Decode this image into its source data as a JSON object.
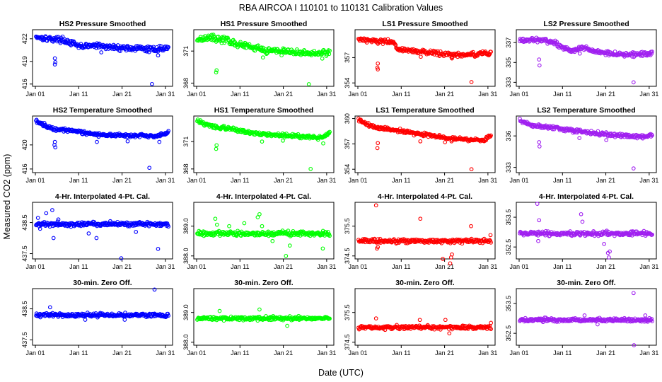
{
  "figure": {
    "title": "RBA   AIRCOA I   110101 to 110131   Calibration Values",
    "xlabel": "Date (UTC)",
    "ylabel": "Measured CO2 (ppm)",
    "x_ticks": [
      "Jan 01",
      "Jan 11",
      "Jan 21",
      "Jan 31"
    ]
  },
  "colors": {
    "HS2": "#0000ff",
    "HS1": "#00ff00",
    "LS1": "#ff0000",
    "LS2": "#a020f0"
  },
  "chart_data": [
    {
      "type": "scatter",
      "title": "HS2 Pressure Smoothed",
      "series": "HS2",
      "xlim": [
        0,
        31
      ],
      "ylim": [
        415.7,
        423.2
      ],
      "yticks": [
        "416",
        "419",
        "422"
      ],
      "ytick_values": [
        416,
        419,
        422
      ],
      "trend": [
        [
          0,
          422.3
        ],
        [
          3,
          422.0
        ],
        [
          6,
          421.9
        ],
        [
          8,
          421.5
        ],
        [
          10,
          421.0
        ],
        [
          14,
          421.1
        ],
        [
          17,
          420.9
        ],
        [
          20,
          420.8
        ],
        [
          24,
          420.7
        ],
        [
          27,
          420.6
        ],
        [
          30.5,
          420.8
        ]
      ],
      "noise": 0.35,
      "outliers": [
        [
          4.5,
          419.4
        ],
        [
          4.5,
          418.6
        ],
        [
          4.6,
          418.9
        ],
        [
          15.2,
          420.2
        ],
        [
          26.9,
          416.0
        ],
        [
          28.3,
          419.8
        ]
      ]
    },
    {
      "type": "scatter",
      "title": "HS1 Pressure Smoothed",
      "series": "HS1",
      "xlim": [
        0,
        31
      ],
      "ylim": [
        367.7,
        373.0
      ],
      "yticks": [
        "368",
        "371"
      ],
      "ytick_values": [
        368,
        371
      ],
      "trend": [
        [
          0,
          372.1
        ],
        [
          3,
          372.3
        ],
        [
          7,
          372.0
        ],
        [
          9,
          371.7
        ],
        [
          12,
          371.4
        ],
        [
          16,
          371.1
        ],
        [
          20,
          371.0
        ],
        [
          24,
          370.8
        ],
        [
          28,
          370.8
        ],
        [
          30.5,
          370.9
        ]
      ],
      "noise": 0.28,
      "outliers": [
        [
          4.5,
          369.0
        ],
        [
          4.6,
          369.2
        ],
        [
          15.3,
          370.4
        ],
        [
          19.6,
          370.6
        ],
        [
          25.9,
          367.9
        ],
        [
          29,
          370.3
        ]
      ]
    },
    {
      "type": "scatter",
      "title": "LS1 Pressure Smoothed",
      "series": "LS1",
      "xlim": [
        0,
        31
      ],
      "ylim": [
        353.6,
        360.3
      ],
      "yticks": [
        "354",
        "357"
      ],
      "ytick_values": [
        354,
        357
      ],
      "trend": [
        [
          0,
          359.2
        ],
        [
          4,
          359.0
        ],
        [
          8,
          358.8
        ],
        [
          9,
          358.1
        ],
        [
          12,
          357.8
        ],
        [
          16,
          357.6
        ],
        [
          20,
          357.4
        ],
        [
          25,
          357.3
        ],
        [
          30.5,
          357.5
        ]
      ],
      "noise": 0.28,
      "outliers": [
        [
          4.5,
          355.8
        ],
        [
          4.6,
          356.3
        ],
        [
          4.6,
          355.6
        ],
        [
          14.5,
          357.1
        ],
        [
          21.7,
          356.9
        ],
        [
          26.2,
          354.1
        ],
        [
          30.2,
          357.3
        ]
      ]
    },
    {
      "type": "scatter",
      "title": "LS2 Pressure Smoothed",
      "series": "LS2",
      "xlim": [
        0,
        31
      ],
      "ylim": [
        332.6,
        338.3
      ],
      "yticks": [
        "333",
        "335",
        "337"
      ],
      "ytick_values": [
        333,
        335,
        337
      ],
      "trend": [
        [
          0,
          337.2
        ],
        [
          4,
          337.3
        ],
        [
          8,
          337.0
        ],
        [
          10,
          336.5
        ],
        [
          12,
          336.2
        ],
        [
          14,
          336.5
        ],
        [
          17,
          336.2
        ],
        [
          21,
          335.9
        ],
        [
          25,
          335.8
        ],
        [
          30.5,
          335.9
        ]
      ],
      "noise": 0.22,
      "outliers": [
        [
          4.6,
          335.3
        ],
        [
          4.7,
          334.7
        ],
        [
          14.0,
          335.9
        ],
        [
          26.4,
          333.0
        ]
      ]
    },
    {
      "type": "scatter",
      "title": "HS2 Temperature Smoothed",
      "series": "HS2",
      "xlim": [
        0,
        31
      ],
      "ylim": [
        415.4,
        424.8
      ],
      "yticks": [
        "416",
        "420"
      ],
      "ytick_values": [
        416,
        420
      ],
      "trend": [
        [
          0,
          424.0
        ],
        [
          1,
          423.7
        ],
        [
          2,
          423.3
        ],
        [
          3,
          422.9
        ],
        [
          5,
          422.6
        ],
        [
          8,
          422.5
        ],
        [
          10,
          422.3
        ],
        [
          12,
          421.9
        ],
        [
          15,
          421.7
        ],
        [
          20,
          421.6
        ],
        [
          26,
          421.5
        ],
        [
          28,
          421.4
        ],
        [
          30.5,
          422.0
        ]
      ],
      "noise": 0.3,
      "outliers": [
        [
          4.4,
          420.0
        ],
        [
          4.5,
          420.5
        ],
        [
          4.6,
          419.6
        ],
        [
          14.2,
          420.5
        ],
        [
          21.3,
          420.6
        ],
        [
          26.3,
          416.2
        ],
        [
          28.6,
          420.5
        ]
      ]
    },
    {
      "type": "scatter",
      "title": "HS1 Temperature Smoothed",
      "series": "HS1",
      "xlim": [
        0,
        31
      ],
      "ylim": [
        367.6,
        373.8
      ],
      "yticks": [
        "368",
        "371"
      ],
      "ytick_values": [
        368,
        371
      ],
      "trend": [
        [
          0,
          373.3
        ],
        [
          1,
          373.1
        ],
        [
          3,
          372.7
        ],
        [
          6,
          372.5
        ],
        [
          9,
          372.3
        ],
        [
          12,
          372.0
        ],
        [
          16,
          371.8
        ],
        [
          20,
          371.7
        ],
        [
          26,
          371.5
        ],
        [
          28,
          371.4
        ],
        [
          30.5,
          371.8
        ]
      ],
      "noise": 0.2,
      "outliers": [
        [
          4.5,
          370.2
        ],
        [
          4.6,
          370.6
        ],
        [
          15.1,
          371.0
        ],
        [
          19.9,
          371.1
        ],
        [
          26.3,
          368.0
        ],
        [
          29.2,
          370.8
        ]
      ]
    },
    {
      "type": "scatter",
      "title": "LS1 Temperature Smoothed",
      "series": "LS1",
      "xlim": [
        0,
        31
      ],
      "ylim": [
        353.6,
        360.3
      ],
      "yticks": [
        "354",
        "357",
        "360"
      ],
      "ytick_values": [
        354,
        357,
        360
      ],
      "trend": [
        [
          0,
          360.0
        ],
        [
          1,
          359.6
        ],
        [
          3,
          359.1
        ],
        [
          6,
          358.8
        ],
        [
          10,
          358.5
        ],
        [
          14,
          358.2
        ],
        [
          18,
          357.9
        ],
        [
          22,
          357.6
        ],
        [
          26,
          357.5
        ],
        [
          29,
          357.4
        ],
        [
          30.5,
          357.9
        ]
      ],
      "noise": 0.2,
      "outliers": [
        [
          4.5,
          356.5
        ],
        [
          4.6,
          357.1
        ],
        [
          14.4,
          357.3
        ],
        [
          20.1,
          357.2
        ],
        [
          21.6,
          357.3
        ],
        [
          26.2,
          354.0
        ]
      ]
    },
    {
      "type": "scatter",
      "title": "LS2 Temperature Smoothed",
      "series": "LS2",
      "xlim": [
        0,
        31
      ],
      "ylim": [
        332.5,
        337.9
      ],
      "yticks": [
        "333",
        "336"
      ],
      "ytick_values": [
        333,
        336
      ],
      "trend": [
        [
          0,
          337.5
        ],
        [
          1,
          337.3
        ],
        [
          3,
          337.0
        ],
        [
          6,
          336.8
        ],
        [
          10,
          336.7
        ],
        [
          13,
          336.5
        ],
        [
          17,
          336.3
        ],
        [
          21,
          336.1
        ],
        [
          25,
          336.0
        ],
        [
          29,
          335.9
        ],
        [
          30.5,
          336.1
        ]
      ],
      "noise": 0.18,
      "outliers": [
        [
          4.6,
          335.4
        ],
        [
          4.7,
          335.0
        ],
        [
          13.9,
          335.8
        ],
        [
          20.1,
          335.6
        ],
        [
          26.4,
          332.9
        ]
      ]
    },
    {
      "type": "scatter",
      "title": "4-Hr. Interpolated 4-Pt. Cal.",
      "series": "HS2",
      "xlim": [
        0,
        31
      ],
      "ylim": [
        437.33,
        439.15
      ],
      "yticks": [
        "437.5",
        "438.5"
      ],
      "ytick_values": [
        437.5,
        438.5
      ],
      "trend": [
        [
          0,
          438.45
        ],
        [
          31,
          438.45
        ]
      ],
      "noise": 0.07,
      "outliers": [
        [
          0.6,
          438.65
        ],
        [
          1.1,
          438.3
        ],
        [
          2.5,
          438.8
        ],
        [
          3.9,
          438.9
        ],
        [
          4.2,
          438.0
        ],
        [
          5.3,
          438.6
        ],
        [
          12.3,
          438.15
        ],
        [
          14.1,
          438.0
        ],
        [
          19.8,
          437.35
        ],
        [
          23.2,
          438.2
        ],
        [
          28.3,
          437.65
        ]
      ]
    },
    {
      "type": "scatter",
      "title": "4-Hr. Interpolated 4-Pt. Cal.",
      "series": "HS1",
      "xlim": [
        0,
        31
      ],
      "ylim": [
        387.9,
        389.8
      ],
      "yticks": [
        "388.0",
        "389.0"
      ],
      "ytick_values": [
        388.0,
        389.0
      ],
      "trend": [
        [
          0,
          388.75
        ],
        [
          31,
          388.75
        ]
      ],
      "noise": 0.08,
      "outliers": [
        [
          4.3,
          389.25
        ],
        [
          4.7,
          389.05
        ],
        [
          7.5,
          389.0
        ],
        [
          11.0,
          389.1
        ],
        [
          14.1,
          389.3
        ],
        [
          14.5,
          389.4
        ],
        [
          15.1,
          389.0
        ],
        [
          17.5,
          388.5
        ],
        [
          20.6,
          388.0
        ],
        [
          21.5,
          388.35
        ],
        [
          29.1,
          388.25
        ]
      ]
    },
    {
      "type": "scatter",
      "title": "4-Hr. Interpolated 4-Pt. Cal.",
      "series": "LS1",
      "xlim": [
        0,
        31
      ],
      "ylim": [
        374.4,
        376.3
      ],
      "yticks": [
        "374.5",
        "375.5"
      ],
      "ytick_values": [
        374.5,
        375.5
      ],
      "trend": [
        [
          0,
          375.0
        ],
        [
          31,
          375.0
        ]
      ],
      "noise": 0.07,
      "outliers": [
        [
          4.2,
          376.2
        ],
        [
          4.4,
          374.75
        ],
        [
          4.6,
          374.8
        ],
        [
          14.4,
          375.75
        ],
        [
          19.6,
          374.4
        ],
        [
          21.3,
          374.25
        ],
        [
          21.5,
          374.45
        ],
        [
          21.7,
          374.55
        ],
        [
          26.1,
          375.5
        ],
        [
          30.6,
          375.2
        ]
      ]
    },
    {
      "type": "scatter",
      "title": "4-Hr. Interpolated 4-Pt. Cal.",
      "series": "LS2",
      "xlim": [
        0,
        31
      ],
      "ylim": [
        352.1,
        354.0
      ],
      "yticks": [
        "352.5",
        "353.5"
      ],
      "ytick_values": [
        352.5,
        353.5
      ],
      "trend": [
        [
          0,
          352.95
        ],
        [
          31,
          352.95
        ]
      ],
      "noise": 0.07,
      "outliers": [
        [
          4.2,
          353.95
        ],
        [
          4.4,
          352.7
        ],
        [
          4.6,
          353.4
        ],
        [
          14.3,
          353.6
        ],
        [
          14.6,
          353.35
        ],
        [
          19.6,
          352.6
        ],
        [
          20.5,
          352.3
        ],
        [
          20.7,
          352.15
        ],
        [
          20.9,
          352.35
        ]
      ]
    },
    {
      "type": "scatter",
      "title": "30-min. Zero Off.",
      "series": "HS2",
      "xlim": [
        0,
        31
      ],
      "ylim": [
        437.33,
        439.15
      ],
      "yticks": [
        "437.5",
        "438.5"
      ],
      "ytick_values": [
        437.5,
        438.5
      ],
      "trend": [
        [
          0,
          438.3
        ],
        [
          31,
          438.3
        ]
      ],
      "noise": 0.06,
      "outliers": [
        [
          3.4,
          438.55
        ],
        [
          27.5,
          439.12
        ],
        [
          20.6,
          438.15
        ],
        [
          11.5,
          438.15
        ]
      ]
    },
    {
      "type": "scatter",
      "title": "30-min. Zero Off.",
      "series": "HS1",
      "xlim": [
        0,
        31
      ],
      "ylim": [
        387.9,
        389.8
      ],
      "yticks": [
        "388.0",
        "389.0"
      ],
      "ytick_values": [
        388.0,
        389.0
      ],
      "trend": [
        [
          0,
          388.8
        ],
        [
          31,
          388.8
        ]
      ],
      "noise": 0.06,
      "outliers": [
        [
          5.3,
          389.05
        ],
        [
          14.5,
          389.1
        ],
        [
          20.9,
          388.55
        ]
      ]
    },
    {
      "type": "scatter",
      "title": "30-min. Zero Off.",
      "series": "LS1",
      "xlim": [
        0,
        31
      ],
      "ylim": [
        374.4,
        376.3
      ],
      "yticks": [
        "374.5",
        "375.5"
      ],
      "ytick_values": [
        374.5,
        375.5
      ],
      "trend": [
        [
          0,
          375.0
        ],
        [
          31,
          375.0
        ]
      ],
      "noise": 0.06,
      "outliers": [
        [
          4.2,
          375.3
        ],
        [
          14.3,
          375.25
        ],
        [
          20.2,
          375.25
        ],
        [
          21.1,
          374.8
        ],
        [
          30.7,
          375.15
        ]
      ]
    },
    {
      "type": "scatter",
      "title": "30-min. Zero Off.",
      "series": "LS2",
      "xlim": [
        0,
        31
      ],
      "ylim": [
        352.1,
        354.0
      ],
      "yticks": [
        "352.5",
        "353.5"
      ],
      "ytick_values": [
        352.5,
        353.5
      ],
      "trend": [
        [
          0,
          352.95
        ],
        [
          31,
          352.95
        ]
      ],
      "noise": 0.06,
      "outliers": [
        [
          26.4,
          353.85
        ],
        [
          26.5,
          352.1
        ],
        [
          15.1,
          353.1
        ],
        [
          18.1,
          352.8
        ],
        [
          29.1,
          353.1
        ]
      ]
    }
  ]
}
